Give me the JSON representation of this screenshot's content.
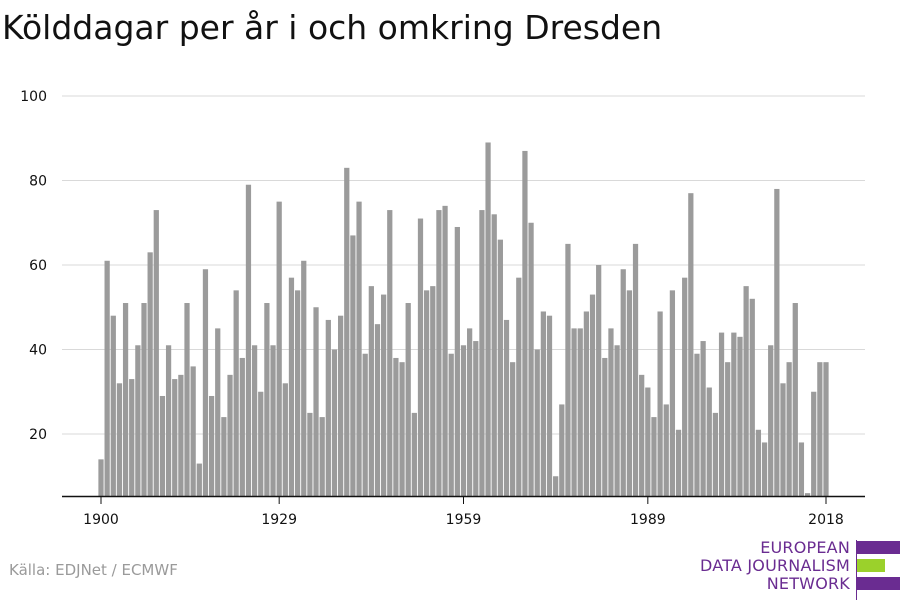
{
  "title": "Kölddagar per år i och omkring Dresden",
  "source": "Källa: EDJNet / ECMWF",
  "logo": {
    "lines": [
      "EUROPEAN",
      "DATA JOURNALISM",
      "NETWORK"
    ],
    "colors": {
      "purple": "#6a2c91",
      "green": "#9bd12b"
    }
  },
  "colors": {
    "bar": "#9b9b9b",
    "grid": "#d9d9d9",
    "axis": "#111111"
  },
  "chart_data": {
    "type": "bar",
    "title": "Kölddagar per år i och omkring Dresden",
    "xlabel": "",
    "ylabel": "",
    "ylim": [
      5,
      100
    ],
    "yticks": [
      20,
      40,
      60,
      80,
      100
    ],
    "xticks": [
      1900,
      1929,
      1959,
      1989,
      2018
    ],
    "grid": true,
    "x_start": 1900,
    "x": [
      1900,
      1901,
      1902,
      1903,
      1904,
      1905,
      1906,
      1907,
      1908,
      1909,
      1910,
      1911,
      1912,
      1913,
      1914,
      1915,
      1916,
      1917,
      1918,
      1919,
      1920,
      1921,
      1922,
      1923,
      1924,
      1925,
      1926,
      1927,
      1928,
      1929,
      1930,
      1931,
      1932,
      1933,
      1934,
      1935,
      1936,
      1937,
      1938,
      1939,
      1940,
      1941,
      1942,
      1943,
      1944,
      1945,
      1946,
      1947,
      1948,
      1949,
      1950,
      1951,
      1952,
      1953,
      1954,
      1955,
      1956,
      1957,
      1958,
      1959,
      1960,
      1961,
      1962,
      1963,
      1964,
      1965,
      1966,
      1967,
      1968,
      1969,
      1970,
      1971,
      1972,
      1973,
      1974,
      1975,
      1976,
      1977,
      1978,
      1979,
      1980,
      1981,
      1982,
      1983,
      1984,
      1985,
      1986,
      1987,
      1988,
      1989,
      1990,
      1991,
      1992,
      1993,
      1994,
      1995,
      1996,
      1997,
      1998,
      1999,
      2000,
      2001,
      2002,
      2003,
      2004,
      2005,
      2006,
      2007,
      2008,
      2009,
      2010,
      2011,
      2012,
      2013,
      2014,
      2015,
      2016,
      2017,
      2018
    ],
    "values": [
      14,
      61,
      48,
      32,
      51,
      33,
      41,
      51,
      63,
      73,
      29,
      41,
      33,
      34,
      51,
      36,
      13,
      59,
      29,
      45,
      24,
      34,
      54,
      38,
      79,
      41,
      30,
      51,
      41,
      75,
      32,
      57,
      54,
      61,
      25,
      50,
      24,
      47,
      40,
      48,
      83,
      67,
      75,
      39,
      55,
      46,
      53,
      73,
      38,
      37,
      51,
      25,
      71,
      54,
      55,
      73,
      74,
      39,
      69,
      41,
      45,
      42,
      73,
      89,
      72,
      66,
      47,
      37,
      57,
      87,
      70,
      40,
      49,
      48,
      10,
      27,
      65,
      45,
      45,
      49,
      53,
      60,
      38,
      45,
      41,
      59,
      54,
      65,
      34,
      31,
      24,
      49,
      27,
      54,
      21,
      57,
      77,
      39,
      42,
      31,
      25,
      44,
      37,
      44,
      43,
      55,
      52,
      21,
      18,
      41,
      78,
      32,
      37,
      51,
      18,
      6,
      30,
      37,
      37
    ]
  }
}
